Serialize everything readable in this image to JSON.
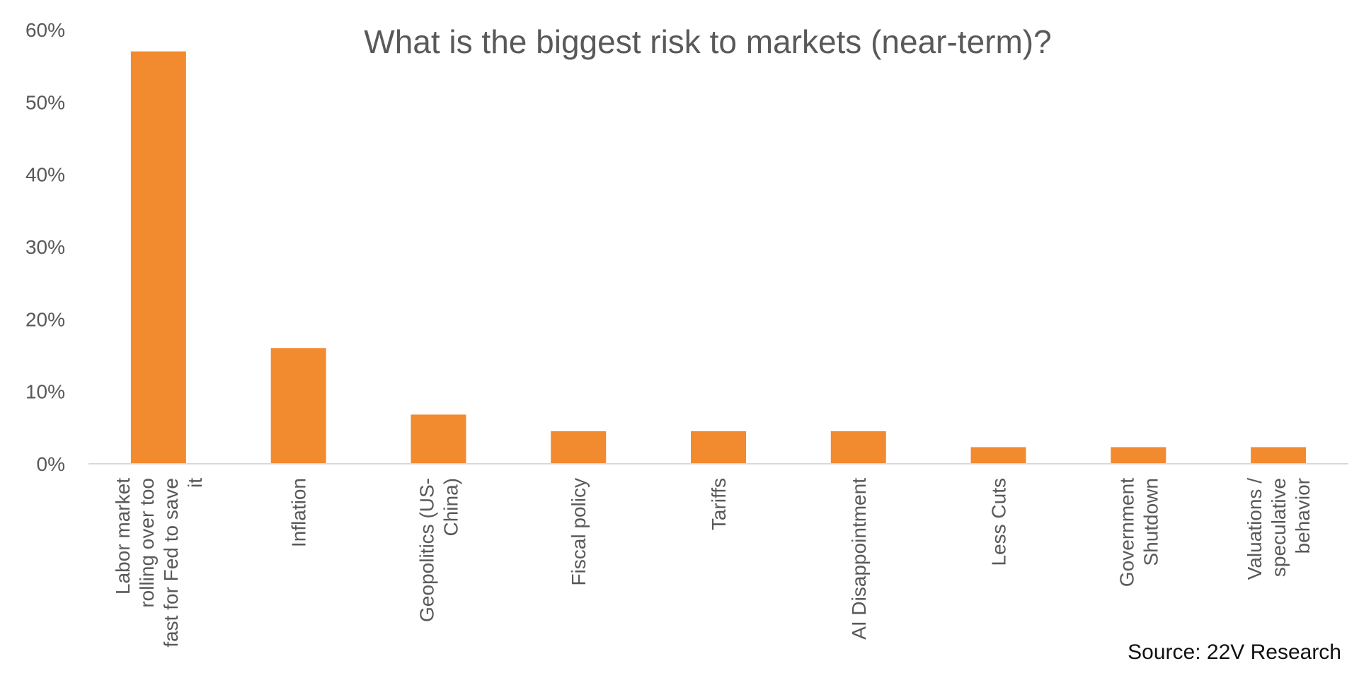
{
  "chart_data": {
    "type": "bar",
    "title": "What is the biggest risk to markets (near-term)?",
    "categories": [
      [
        "Labor market",
        "rolling over too",
        "fast for Fed to save",
        "it"
      ],
      [
        "Inflation"
      ],
      [
        "Geopolitics (US-",
        "China)"
      ],
      [
        "Fiscal policy"
      ],
      [
        "Tariffs"
      ],
      [
        "AI Disappointment"
      ],
      [
        "Less Cuts"
      ],
      [
        "Government",
        "Shutdown"
      ],
      [
        "Valuations /",
        "speculative",
        "behavior"
      ]
    ],
    "values": [
      0.57,
      0.16,
      0.068,
      0.045,
      0.045,
      0.045,
      0.023,
      0.023,
      0.023
    ],
    "ylim": [
      0,
      0.6
    ],
    "yticks": [
      0,
      0.1,
      0.2,
      0.3,
      0.4,
      0.5,
      0.6
    ],
    "ytick_labels": [
      "0%",
      "10%",
      "20%",
      "30%",
      "40%",
      "50%",
      "60%"
    ],
    "xlabel": "",
    "ylabel": "",
    "grid": false,
    "legend": "none",
    "bar_color": "#F28A30"
  },
  "source": "Source: 22V Research"
}
